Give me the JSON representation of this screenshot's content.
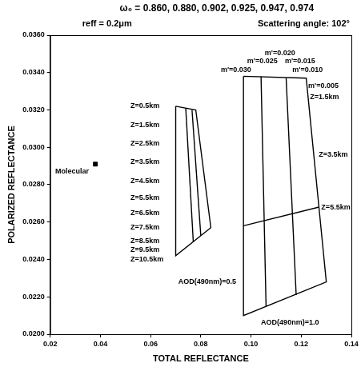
{
  "chart_data": {
    "type": "line",
    "title": "ω₀ = 0.860, 0.880, 0.902, 0.925, 0.947, 0.974",
    "subtitle": [
      "reff = 0.2μm",
      "Scattering angle: 102°"
    ],
    "x_label": "TOTAL REFLECTANCE",
    "y_label": "POLARIZED REFLECTANCE",
    "xlim": [
      0.02,
      0.14
    ],
    "xticks": [
      0.02,
      0.04,
      0.06,
      0.08,
      {
        "value": 0.1,
        "label": "0.10"
      },
      0.12,
      0.14
    ],
    "ylim": [
      0.02,
      0.036
    ],
    "yticks": [
      {
        "value": 0.02,
        "label": "0.0200"
      },
      {
        "value": 0.022,
        "label": "0.0220"
      },
      {
        "value": 0.024,
        "label": "0.0240"
      },
      {
        "value": 0.026,
        "label": "0.0260"
      },
      {
        "value": 0.028,
        "label": "0.0280"
      },
      {
        "value": 0.03,
        "label": "0.0300"
      },
      {
        "value": 0.032,
        "label": "0.0320"
      },
      {
        "value": 0.034,
        "label": "0.0340"
      },
      {
        "value": 0.036,
        "label": "0.0360"
      }
    ],
    "grid": false,
    "series": [
      {
        "color": "#000000",
        "x": [
          0.07,
          0.078,
          0.084,
          0.07,
          0.07
        ],
        "values": [
          0.0322,
          0.032,
          0.0257,
          0.0242,
          0.0322
        ]
      },
      {
        "color": "#000000",
        "x": [
          0.074,
          0.077
        ],
        "values": [
          0.0321,
          0.02495
        ]
      },
      {
        "color": "#000000",
        "x": [
          0.0765,
          0.08
        ],
        "values": [
          0.032,
          0.02527
        ]
      },
      {
        "color": "#000000",
        "x": [
          0.097,
          0.122,
          0.13,
          0.097,
          0.097
        ],
        "values": [
          0.0338,
          0.0337,
          0.0228,
          0.021,
          0.0338
        ]
      },
      {
        "color": "#000000",
        "x": [
          0.104,
          0.106
        ],
        "values": [
          0.0338,
          0.0215
        ]
      },
      {
        "color": "#000000",
        "x": [
          0.114,
          0.118
        ],
        "values": [
          0.0337,
          0.0221
        ]
      },
      {
        "color": "#000000",
        "x": [
          0.097,
          0.1271
        ],
        "values": [
          0.0258,
          0.0268
        ]
      },
      {
        "type": "scatter",
        "marker": "square",
        "color": "#000000",
        "x": [
          0.038
        ],
        "values": [
          0.0291
        ]
      }
    ],
    "annotations": [
      {
        "text": "Molecular",
        "x": 0.022,
        "y": 0.0287
      },
      {
        "text": "Z=0.5km",
        "x": 0.052,
        "y": 0.0322
      },
      {
        "text": "Z=1.5km",
        "x": 0.052,
        "y": 0.0312
      },
      {
        "text": "Z=2.5km",
        "x": 0.052,
        "y": 0.0302
      },
      {
        "text": "Z=3.5km",
        "x": 0.052,
        "y": 0.0292
      },
      {
        "text": "Z=4.5km",
        "x": 0.052,
        "y": 0.0282
      },
      {
        "text": "Z=5.5km",
        "x": 0.052,
        "y": 0.0273
      },
      {
        "text": "Z=6.5km",
        "x": 0.052,
        "y": 0.0265
      },
      {
        "text": "Z=7.5km",
        "x": 0.052,
        "y": 0.0257
      },
      {
        "text": "Z=8.5km",
        "x": 0.052,
        "y": 0.025
      },
      {
        "text": "Z=9.5km",
        "x": 0.052,
        "y": 0.0245
      },
      {
        "text": "Z=10.5km",
        "x": 0.052,
        "y": 0.024
      },
      {
        "text": "AOD(490nm)=0.5",
        "x": 0.071,
        "y": 0.0228
      },
      {
        "text": "AOD(490nm)=1.0",
        "x": 0.104,
        "y": 0.0206
      },
      {
        "text": "m'=0.020",
        "x": 0.1055,
        "y": 0.03505
      },
      {
        "text": "m'=0.025",
        "x": 0.0985,
        "y": 0.0346
      },
      {
        "text": "m'=0.015",
        "x": 0.1135,
        "y": 0.0346
      },
      {
        "text": "m'=0.030",
        "x": 0.088,
        "y": 0.03415
      },
      {
        "text": "m'=0.010",
        "x": 0.1165,
        "y": 0.03415
      },
      {
        "text": "m'=0.005",
        "x": 0.1228,
        "y": 0.0333
      },
      {
        "text": "Z=1.5km",
        "x": 0.1235,
        "y": 0.0327
      },
      {
        "text": "Z=3.5km",
        "x": 0.127,
        "y": 0.0296
      },
      {
        "text": "Z=5.5km",
        "x": 0.128,
        "y": 0.0268
      }
    ]
  }
}
